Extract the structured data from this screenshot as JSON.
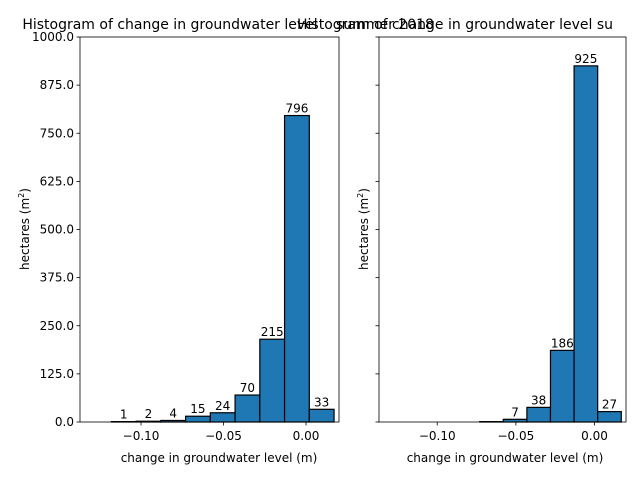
{
  "figure": {
    "background": "#ffffff",
    "bar_color": "#1f77b4",
    "edge_color": "#000000"
  },
  "chart_data": [
    {
      "type": "bar",
      "title": "Histogram of change in groundwater level",
      "xlabel": "change in groundwater level (m)",
      "ylabel": "hectares (m",
      "ylabel_superscript": "2",
      "ylabel_suffix": ")",
      "xlim": [
        -0.137,
        0.02
      ],
      "ylim": [
        0,
        1000
      ],
      "yticks": [
        0,
        125,
        250,
        375,
        500,
        625,
        750,
        875,
        1000
      ],
      "ytick_labels": [
        "0.0",
        "125.0",
        "250.0",
        "375.0",
        "500.0",
        "625.0",
        "750.0",
        "875.0",
        "1000.0"
      ],
      "show_ytick_labels": true,
      "xticks": [
        -0.1,
        -0.05,
        0.0
      ],
      "xtick_labels": [
        "−0.10",
        "−0.05",
        "0.00"
      ],
      "bin_edges": [
        -0.1335,
        -0.118,
        -0.103,
        -0.088,
        -0.073,
        -0.058,
        -0.043,
        -0.028,
        -0.013,
        0.002,
        0.017
      ],
      "values": [
        0,
        1,
        2,
        4,
        15,
        24,
        70,
        215,
        796,
        33
      ],
      "data_labels": [
        "",
        "1",
        "2",
        "4",
        "15",
        "24",
        "70",
        "215",
        "796",
        "33"
      ],
      "grid": false,
      "legend": "none"
    },
    {
      "type": "bar",
      "title": "Histogram of change in groundwater level su",
      "title_overlap": "summer 2018",
      "xlabel": "change in groundwater level (m)",
      "ylabel": "hectares (m",
      "ylabel_superscript": "2",
      "ylabel_suffix": ")",
      "xlim": [
        -0.137,
        0.02
      ],
      "ylim": [
        0,
        1000
      ],
      "yticks": [
        0,
        125,
        250,
        375,
        500,
        625,
        750,
        875,
        1000
      ],
      "ytick_labels": [
        "",
        "",
        "",
        "",
        "",
        "",
        "",
        "",
        ""
      ],
      "show_ytick_labels": false,
      "xticks": [
        -0.1,
        -0.05,
        0.0
      ],
      "xtick_labels": [
        "−0.10",
        "−0.05",
        "0.00"
      ],
      "bin_edges": [
        -0.1335,
        -0.118,
        -0.103,
        -0.088,
        -0.073,
        -0.058,
        -0.043,
        -0.028,
        -0.013,
        0.002,
        0.017
      ],
      "values": [
        0,
        0,
        0,
        0,
        1,
        7,
        38,
        186,
        925,
        27
      ],
      "data_labels": [
        "",
        "",
        "",
        "",
        "",
        "7",
        "38",
        "186",
        "925",
        "27"
      ],
      "grid": false,
      "legend": "none"
    }
  ]
}
